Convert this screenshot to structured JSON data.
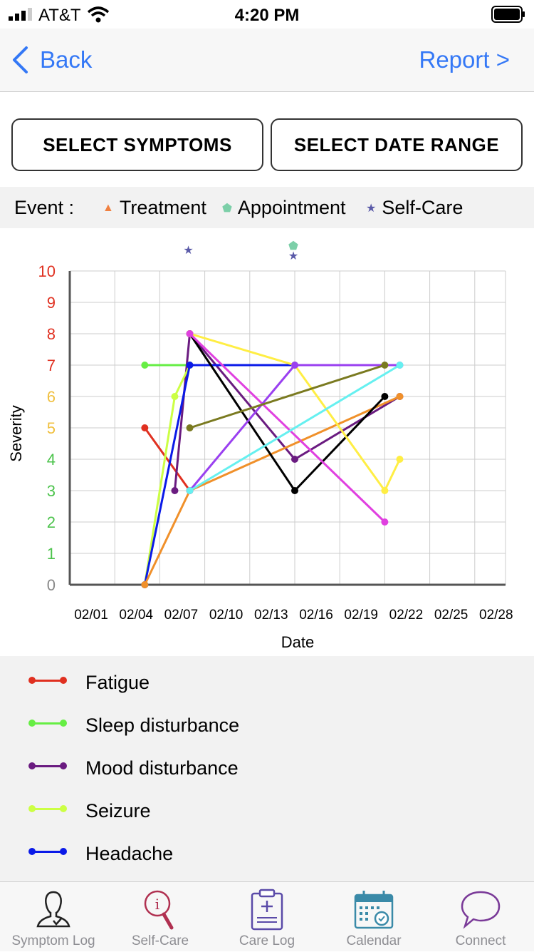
{
  "status": {
    "carrier": "AT&T",
    "time": "4:20 PM"
  },
  "nav": {
    "back_label": "Back",
    "report_label": "Report >"
  },
  "buttons": {
    "select_symptoms": "SELECT SYMPTOMS",
    "select_date_range": "SELECT DATE RANGE"
  },
  "events": {
    "label": "Event :",
    "items": [
      {
        "name": "Treatment",
        "marker": "▲",
        "color": "#f08040"
      },
      {
        "name": "Appointment",
        "marker": "⬟",
        "color": "#7ccfa8"
      },
      {
        "name": "Self-Care",
        "marker": "★",
        "color": "#5a5aa8"
      }
    ]
  },
  "chart_data": {
    "type": "line",
    "xlabel": "Date",
    "ylabel": "Severity",
    "ylim": [
      0,
      10
    ],
    "x_ticks": [
      "02/01",
      "02/04",
      "02/07",
      "02/10",
      "02/13",
      "02/16",
      "02/19",
      "02/22",
      "02/25",
      "02/28"
    ],
    "y_ticks": [
      "0",
      "1",
      "2",
      "3",
      "4",
      "5",
      "6",
      "7",
      "8",
      "9",
      "10"
    ],
    "y_tick_colors": [
      "#888888",
      "#4cc34c",
      "#4cc34c",
      "#4cc34c",
      "#4cc34c",
      "#f0c040",
      "#f0c040",
      "#e03020",
      "#e03020",
      "#e03020",
      "#e03020"
    ],
    "grid": true,
    "event_markers": [
      {
        "event": "Self-Care",
        "date": "02/09"
      },
      {
        "event": "Appointment",
        "date": "02/16"
      },
      {
        "event": "Self-Care",
        "date": "02/16"
      }
    ],
    "series": [
      {
        "name": "Fatigue",
        "color": "#e03020",
        "points": [
          [
            "02/06",
            5
          ],
          [
            "02/09",
            3
          ]
        ]
      },
      {
        "name": "Sleep disturbance",
        "color": "#66ee44",
        "points": [
          [
            "02/06",
            7
          ],
          [
            "02/09",
            7
          ]
        ]
      },
      {
        "name": "Mood disturbance",
        "color": "#6a1b80",
        "points": [
          [
            "02/08",
            3
          ],
          [
            "02/09",
            8
          ],
          [
            "02/16",
            4
          ],
          [
            "02/23",
            6
          ]
        ]
      },
      {
        "name": "Seizure",
        "color": "#ccff44",
        "points": [
          [
            "02/06",
            0
          ],
          [
            "02/08",
            6
          ],
          [
            "02/09",
            7
          ]
        ]
      },
      {
        "name": "Headache",
        "color": "#0a1ae8",
        "points": [
          [
            "02/06",
            0
          ],
          [
            "02/09",
            7
          ],
          [
            "02/16",
            7
          ]
        ]
      },
      {
        "color": "#f0902a",
        "points": [
          [
            "02/06",
            0
          ],
          [
            "02/09",
            3
          ],
          [
            "02/23",
            6
          ]
        ]
      },
      {
        "color": "#000000",
        "points": [
          [
            "02/09",
            8
          ],
          [
            "02/16",
            3
          ],
          [
            "02/22",
            6
          ]
        ]
      },
      {
        "color": "#ffee44",
        "points": [
          [
            "02/09",
            8
          ],
          [
            "02/16",
            7
          ],
          [
            "02/22",
            3
          ],
          [
            "02/23",
            4
          ]
        ]
      },
      {
        "color": "#e040e0",
        "points": [
          [
            "02/09",
            8
          ],
          [
            "02/22",
            2
          ]
        ]
      },
      {
        "color": "#9a40f0",
        "points": [
          [
            "02/09",
            3
          ],
          [
            "02/16",
            7
          ],
          [
            "02/23",
            7
          ]
        ]
      },
      {
        "color": "#7a7a20",
        "points": [
          [
            "02/09",
            5
          ],
          [
            "02/22",
            7
          ]
        ]
      },
      {
        "color": "#66f0f0",
        "points": [
          [
            "02/09",
            3
          ],
          [
            "02/23",
            7
          ]
        ]
      }
    ]
  },
  "legend": [
    {
      "name": "Fatigue",
      "color": "#e03020"
    },
    {
      "name": "Sleep disturbance",
      "color": "#66ee44"
    },
    {
      "name": "Mood disturbance",
      "color": "#6a1b80"
    },
    {
      "name": "Seizure",
      "color": "#ccff44"
    },
    {
      "name": "Headache",
      "color": "#0a1ae8"
    }
  ],
  "tabs": [
    {
      "label": "Symptom Log",
      "icon": "person-check-icon"
    },
    {
      "label": "Self-Care",
      "icon": "magnifier-info-icon"
    },
    {
      "label": "Care Log",
      "icon": "clipboard-icon"
    },
    {
      "label": "Calendar",
      "icon": "calendar-icon"
    },
    {
      "label": "Connect",
      "icon": "chat-bubble-icon"
    }
  ]
}
